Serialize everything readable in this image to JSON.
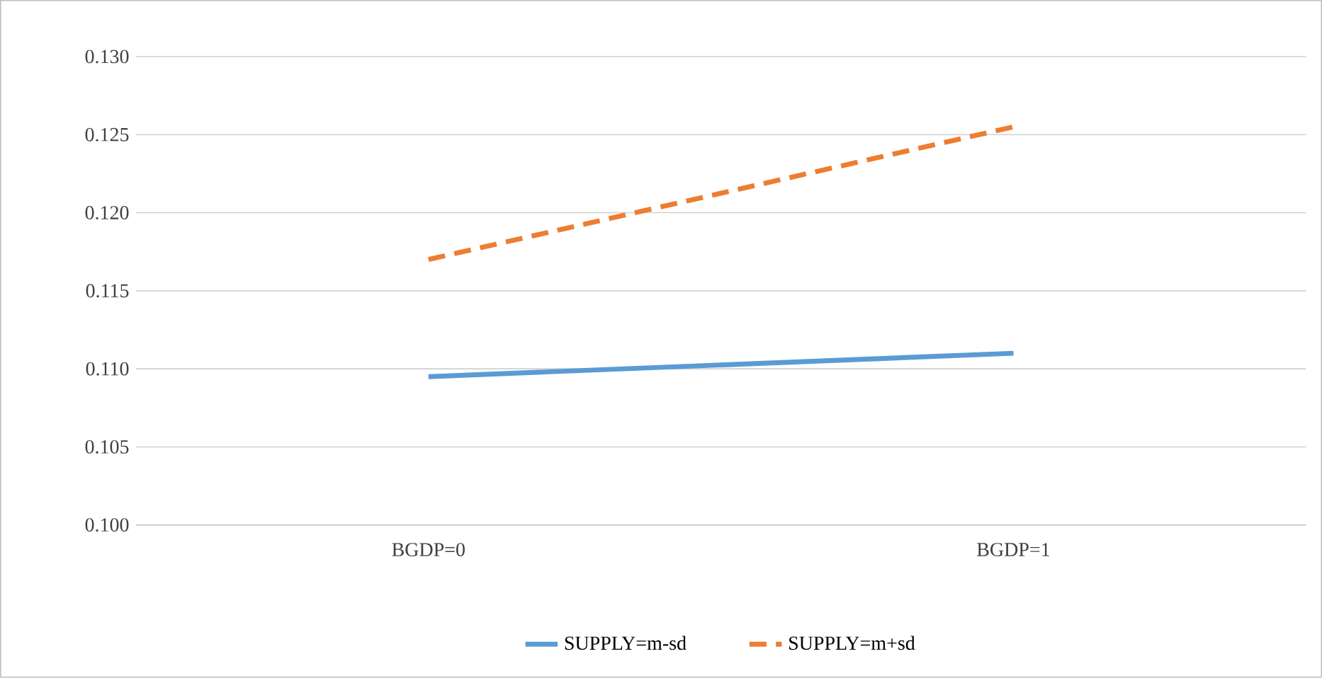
{
  "chart_data": {
    "type": "line",
    "categories": [
      "BGDP=0",
      "BGDP=1"
    ],
    "series": [
      {
        "name": "SUPPLY=m-sd",
        "color": "#5b9bd5",
        "line_style": "solid",
        "values": [
          0.1095,
          0.111
        ]
      },
      {
        "name": "SUPPLY=m+sd",
        "color": "#ed7d31",
        "line_style": "dashed",
        "values": [
          0.117,
          0.1255
        ]
      }
    ],
    "ylim": [
      0.1,
      0.13
    ],
    "yticks": [
      {
        "value": 0.1,
        "label": "0.100"
      },
      {
        "value": 0.105,
        "label": "0.105"
      },
      {
        "value": 0.11,
        "label": "0.110"
      },
      {
        "value": 0.115,
        "label": "0.115"
      },
      {
        "value": 0.12,
        "label": "0.120"
      },
      {
        "value": 0.125,
        "label": "0.125"
      },
      {
        "value": 0.13,
        "label": "0.130"
      }
    ],
    "grid": "y",
    "legend": "bottom"
  }
}
